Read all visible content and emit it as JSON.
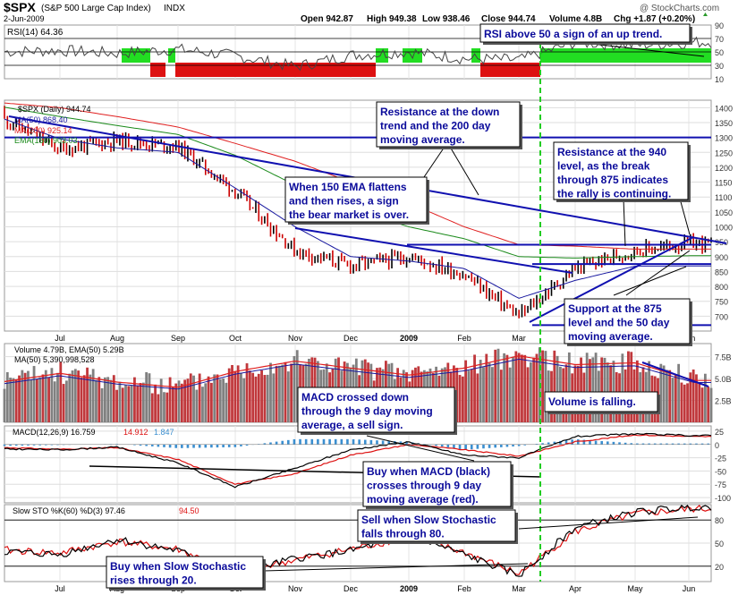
{
  "header": {
    "symbol": "$SPX",
    "name": "(S&P 500 Large Cap Index)",
    "exchange": "INDX",
    "date": "2-Jun-2009",
    "open": "Open 942.87",
    "high": "High 949.38",
    "low": "Low 938.46",
    "close": "Close 944.74",
    "volume": "Volume 4.8B",
    "chg": "Chg +1.87 (+0.20%)",
    "brand": "@ StockCharts.com"
  },
  "colors": {
    "price_up": "#000000",
    "price_down": "#cc0000",
    "ma50": "#1a1aa0",
    "ma200": "#e02020",
    "ema150": "#1a8a1a",
    "annotation_line": "#1010b0",
    "rsi_up": "#22dd22",
    "rsi_down": "#dd1111",
    "vertical_marker": "#22cc22",
    "macd_hist": "#3b8fd0",
    "volume_up": "#808080",
    "volume_down": "#c0383c"
  },
  "x_axis": {
    "labels": [
      "Jul",
      "Aug",
      "Sep",
      "Oct",
      "Nov",
      "Dec",
      "2009",
      "Feb",
      "Mar",
      "Apr",
      "May",
      "Jun"
    ]
  },
  "annotations": {
    "rsi_note": "RSI above 50 a sign of an up trend.",
    "resistance_200": [
      "Resistance at the down",
      "trend and the 200 day",
      "moving average."
    ],
    "resistance_940": [
      "Resistance at the 940",
      "level, as the break",
      "through 875 indicates",
      "the rally is continuing."
    ],
    "ema_note": [
      "When 150 EMA flattens",
      "and then rises, a sign",
      "the bear market is over."
    ],
    "support_875": [
      "Support at the 875",
      "level and the 50 day",
      "moving average."
    ],
    "macd_sell": [
      "MACD crossed down",
      "through the 9 day moving",
      "average, a sell sign."
    ],
    "volume_note": "Volume is falling.",
    "macd_buy": [
      "Buy when MACD (black)",
      "crosses through 9 day",
      "moving average (red)."
    ],
    "sto_sell": [
      "Sell when Slow Stochastic",
      "falls through 80."
    ],
    "sto_buy": [
      "Buy when Slow Stochastic",
      "rises through 20."
    ]
  },
  "chart_data": [
    {
      "type": "line",
      "title": "RSI(14) 64.36",
      "legend": [
        "RSI(14) 64.36"
      ],
      "y_ticks": [
        "90",
        "70",
        "50",
        "30",
        "10"
      ],
      "ylim": [
        10,
        90
      ],
      "reference_lines": [
        30,
        50,
        70
      ],
      "values_by_month": {
        "Jul": 48,
        "Aug": 54,
        "Sep": 44,
        "Oct": 28,
        "Nov": 45,
        "Dec": 50,
        "2009": 52,
        "Feb": 40,
        "Mar": 38,
        "Apr": 64,
        "May": 60,
        "Jun": 64.36
      }
    },
    {
      "type": "line",
      "title": "$SPX (Daily) 944.74",
      "legend": [
        "$SPX (Daily) 944.74",
        "MA(50) 868.40",
        "MA(200) 925.14",
        "EMA(150) 903.03"
      ],
      "y_ticks": [
        "1400",
        "1350",
        "1300",
        "1250",
        "1200",
        "1150",
        "1100",
        "1050",
        "1000",
        "950",
        "900",
        "850",
        "800",
        "750",
        "700"
      ],
      "ylim": [
        650,
        1425
      ],
      "x": [
        "Jun",
        "Jul",
        "Aug",
        "Sep",
        "Oct",
        "Nov",
        "Dec",
        "2009",
        "Feb",
        "Mar",
        "Apr",
        "May",
        "Jun"
      ],
      "series": [
        {
          "name": "$SPX (Daily) 944.74",
          "values": [
            1390,
            1260,
            1290,
            1270,
            1120,
            920,
            870,
            900,
            840,
            700,
            860,
            920,
            944.74
          ]
        },
        {
          "name": "MA(50) 868.40",
          "values": [
            1380,
            1295,
            1265,
            1250,
            1130,
            1000,
            900,
            885,
            860,
            760,
            820,
            868,
            868.4
          ]
        },
        {
          "name": "MA(200) 925.14",
          "values": [
            1420,
            1400,
            1370,
            1335,
            1280,
            1220,
            1150,
            1080,
            1000,
            940,
            935,
            925,
            925.14
          ]
        },
        {
          "name": "EMA(150) 903.03",
          "values": [
            1410,
            1370,
            1340,
            1310,
            1240,
            1140,
            1060,
            1000,
            960,
            900,
            895,
            900,
            903.03
          ]
        }
      ],
      "reference_lines": [
        1300,
        940,
        875,
        670
      ]
    },
    {
      "type": "bar",
      "title": "Volume 4.79B, EMA(50) 5.29B",
      "legend": [
        "Volume 4.79B, EMA(50) 5.29B",
        "MA(50) 5,390,998,528"
      ],
      "y_ticks": [
        "7.5B",
        "5.0B",
        "2.5B"
      ],
      "ylim": [
        0,
        9
      ],
      "values_by_month": {
        "Jul": 4.6,
        "Aug": 4.0,
        "Sep": 5.8,
        "Oct": 7.0,
        "Nov": 6.2,
        "Dec": 5.4,
        "2009": 5.6,
        "Feb": 6.2,
        "Mar": 7.6,
        "Apr": 6.6,
        "May": 6.8,
        "Jun": 4.79
      }
    },
    {
      "type": "line",
      "title": "MACD(12,26,9) 16.759, 14.912, 1.847",
      "legend": [
        "MACD(12,26,9) 16.759",
        "14.912",
        "1.847"
      ],
      "y_ticks": [
        "25",
        "0",
        "-25",
        "-50",
        "-75",
        "-100"
      ],
      "ylim": [
        -110,
        35
      ],
      "series": [
        {
          "name": "MACD(12,26,9) 16.759",
          "values": [
            -8,
            -10,
            -5,
            -35,
            -80,
            -45,
            -10,
            5,
            -20,
            -25,
            15,
            20,
            16.759
          ]
        },
        {
          "name": "14.912",
          "values": [
            -5,
            -9,
            -6,
            -28,
            -75,
            -55,
            -20,
            0,
            -10,
            -22,
            5,
            18,
            14.912
          ]
        },
        {
          "name": "1.847",
          "values": [
            -3,
            -1,
            1,
            -7,
            -5,
            10,
            10,
            5,
            -10,
            -3,
            10,
            2,
            1.847
          ]
        }
      ]
    },
    {
      "type": "line",
      "title": "Slow STO %K(60) %D(3) 97.46, 94.50",
      "legend": [
        "Slow STO %K(60) %D(3) 97.46",
        "94.50"
      ],
      "y_ticks": [
        "80",
        "50",
        "20"
      ],
      "ylim": [
        0,
        100
      ],
      "reference_lines": [
        20,
        80
      ],
      "series": [
        {
          "name": "Slow STO %K(60) %D(3) 97.46",
          "values": [
            40,
            35,
            55,
            40,
            10,
            30,
            40,
            60,
            35,
            8,
            70,
            90,
            97.46
          ]
        },
        {
          "name": "94.50",
          "values": [
            42,
            37,
            52,
            42,
            12,
            28,
            42,
            58,
            38,
            10,
            65,
            88,
            94.5
          ]
        }
      ]
    }
  ]
}
